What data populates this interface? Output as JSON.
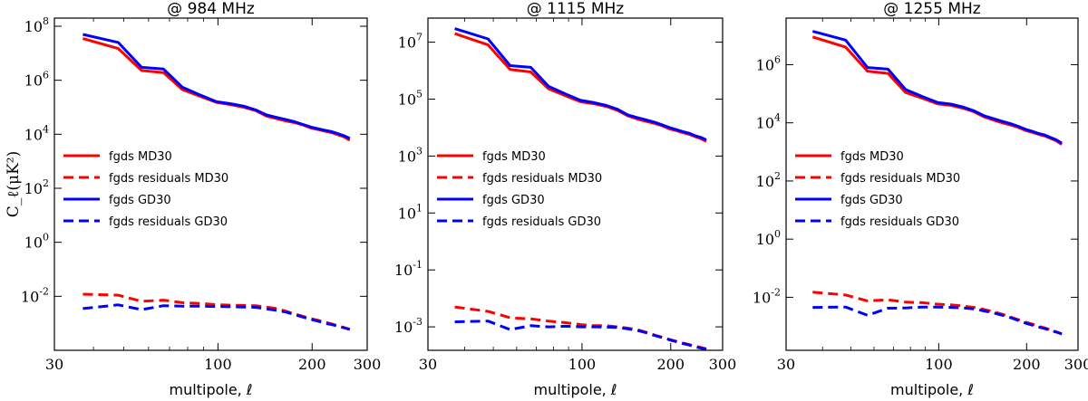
{
  "chart_data": [
    {
      "type": "line",
      "title": "@ 984 MHz",
      "xlabel": "multipole, ℓ",
      "ylabel": "C_ℓ(μK²)",
      "xscale": "log",
      "yscale": "log",
      "xlim": [
        30,
        300
      ],
      "ylim": [
        0.0001,
        200000000
      ],
      "xticks": [
        30,
        100,
        200,
        300
      ],
      "xtick_labels": [
        "30",
        "100",
        "200",
        "300"
      ],
      "yticks": [
        0.01,
        1,
        100,
        10000,
        1000000,
        100000000
      ],
      "ytick_labels": [
        [
          "10",
          "-2"
        ],
        [
          "10",
          "0"
        ],
        [
          "10",
          "2"
        ],
        [
          "10",
          "4"
        ],
        [
          "10",
          "6"
        ],
        [
          "10",
          "8"
        ]
      ],
      "x": [
        37,
        48,
        57,
        67,
        77,
        88,
        99,
        110,
        121,
        132,
        143,
        154,
        165,
        176,
        187,
        198,
        209,
        220,
        231,
        242,
        253,
        264
      ],
      "series": [
        {
          "name": "fgds MD30",
          "color": "#ff0000",
          "style": "solid",
          "values": [
            35000000,
            15000000,
            2300000,
            1900000,
            450000,
            250000,
            150000,
            125000,
            100000,
            75000,
            47000,
            38000,
            31000,
            27000,
            22000,
            17000,
            15000,
            13000,
            11500,
            9500,
            8000,
            6000
          ]
        },
        {
          "name": "fgds residuals MD30",
          "color": "#ff0000",
          "style": "dashed",
          "values": [
            0.012,
            0.011,
            0.0065,
            0.0072,
            0.0058,
            0.0054,
            0.0049,
            0.0047,
            0.0046,
            0.0045,
            0.004,
            0.0035,
            0.0028,
            0.0022,
            0.0018,
            0.0015,
            0.0013,
            0.0011,
            0.00095,
            0.0008,
            0.0007,
            0.0006
          ]
        },
        {
          "name": "fgds GD30",
          "color": "#0000ff",
          "style": "solid",
          "values": [
            50000000,
            25000000,
            3000000,
            2600000,
            550000,
            280000,
            160000,
            135000,
            110000,
            80000,
            52000,
            42000,
            35000,
            29000,
            23000,
            18500,
            16000,
            14000,
            12500,
            10500,
            8800,
            7000
          ]
        },
        {
          "name": "fgds residuals GD30",
          "color": "#0000ff",
          "style": "dashed",
          "values": [
            0.0035,
            0.0048,
            0.0032,
            0.0045,
            0.0043,
            0.0043,
            0.0042,
            0.0041,
            0.004,
            0.0039,
            0.0034,
            0.003,
            0.0026,
            0.0021,
            0.0017,
            0.0014,
            0.0012,
            0.001,
            0.0009,
            0.00078,
            0.00068,
            0.0006
          ]
        }
      ]
    },
    {
      "type": "line",
      "title": "@ 1115 MHz",
      "xlabel": "multipole, ℓ",
      "ylabel": "",
      "xscale": "log",
      "yscale": "log",
      "xlim": [
        30,
        300
      ],
      "ylim": [
        0.00015,
        70000000
      ],
      "xticks": [
        30,
        100,
        200,
        300
      ],
      "xtick_labels": [
        "30",
        "100",
        "200",
        "300"
      ],
      "yticks": [
        0.001,
        0.1,
        10,
        1000,
        100000,
        10000000
      ],
      "ytick_labels": [
        [
          "10",
          "-3"
        ],
        [
          "10",
          "-1"
        ],
        [
          "10",
          "1"
        ],
        [
          "10",
          "3"
        ],
        [
          "10",
          "5"
        ],
        [
          "10",
          "7"
        ]
      ],
      "x": [
        37,
        48,
        57,
        67,
        77,
        88,
        99,
        110,
        121,
        132,
        143,
        154,
        165,
        176,
        187,
        198,
        209,
        220,
        231,
        242,
        253,
        264
      ],
      "series": [
        {
          "name": "fgds MD30",
          "color": "#ff0000",
          "style": "solid",
          "values": [
            20000000,
            8000000,
            1100000,
            900000,
            230000,
            130000,
            80000,
            68000,
            55000,
            40000,
            26000,
            20000,
            16500,
            14000,
            11500,
            9000,
            7800,
            6600,
            5800,
            4800,
            4100,
            3300
          ]
        },
        {
          "name": "fgds residuals MD30",
          "color": "#ff0000",
          "style": "dashed",
          "values": [
            0.005,
            0.0035,
            0.0021,
            0.0019,
            0.0016,
            0.0014,
            0.0012,
            0.0011,
            0.0011,
            0.001,
            0.0009,
            0.0008,
            0.00065,
            0.00052,
            0.00043,
            0.00036,
            0.00031,
            0.00027,
            0.00024,
            0.00021,
            0.00019,
            0.00017
          ]
        },
        {
          "name": "fgds GD30",
          "color": "#0000ff",
          "style": "solid",
          "values": [
            30000000,
            13000000,
            1500000,
            1300000,
            280000,
            150000,
            90000,
            75000,
            60000,
            44000,
            28000,
            22500,
            18500,
            15500,
            12500,
            10000,
            8500,
            7200,
            6300,
            5200,
            4500,
            3700
          ]
        },
        {
          "name": "fgds residuals GD30",
          "color": "#0000ff",
          "style": "dashed",
          "values": [
            0.0015,
            0.0016,
            0.0008,
            0.0011,
            0.001,
            0.00105,
            0.001,
            0.001,
            0.00098,
            0.00095,
            0.00085,
            0.00075,
            0.00062,
            0.0005,
            0.00042,
            0.00035,
            0.0003,
            0.00026,
            0.00023,
            0.0002,
            0.00018,
            0.00016
          ]
        }
      ]
    },
    {
      "type": "line",
      "title": "@ 1255 MHz",
      "xlabel": "multipole, ℓ",
      "ylabel": "",
      "xscale": "log",
      "yscale": "log",
      "xlim": [
        30,
        300
      ],
      "ylim": [
        0.00015,
        40000000
      ],
      "xticks": [
        30,
        100,
        200,
        300
      ],
      "xtick_labels": [
        "30",
        "100",
        "200",
        "300"
      ],
      "yticks": [
        0.01,
        1,
        100,
        10000,
        1000000
      ],
      "ytick_labels": [
        [
          "10",
          "-2"
        ],
        [
          "10",
          "0"
        ],
        [
          "10",
          "2"
        ],
        [
          "10",
          "4"
        ],
        [
          "10",
          "6"
        ]
      ],
      "x": [
        37,
        48,
        57,
        67,
        77,
        88,
        99,
        110,
        121,
        132,
        143,
        154,
        165,
        176,
        187,
        198,
        209,
        220,
        231,
        242,
        253,
        264
      ],
      "series": [
        {
          "name": "fgds MD30",
          "color": "#ff0000",
          "style": "solid",
          "values": [
            9000000,
            4000000,
            600000,
            500000,
            110000,
            70000,
            45000,
            40000,
            32000,
            24000,
            16000,
            12500,
            10000,
            8500,
            7000,
            5500,
            4700,
            4000,
            3500,
            2900,
            2400,
            1800
          ]
        },
        {
          "name": "fgds residuals MD30",
          "color": "#ff0000",
          "style": "dashed",
          "values": [
            0.015,
            0.012,
            0.0075,
            0.0082,
            0.0068,
            0.0065,
            0.0058,
            0.0055,
            0.005,
            0.0045,
            0.0038,
            0.0032,
            0.0026,
            0.0021,
            0.0017,
            0.0014,
            0.0012,
            0.001,
            0.00088,
            0.00075,
            0.00065,
            0.00055
          ]
        },
        {
          "name": "fgds GD30",
          "color": "#0000ff",
          "style": "solid",
          "values": [
            14000000,
            7000000,
            800000,
            700000,
            140000,
            80000,
            50000,
            44000,
            35000,
            26000,
            17500,
            14000,
            11200,
            9400,
            7600,
            6000,
            5100,
            4300,
            3800,
            3100,
            2600,
            2000
          ]
        },
        {
          "name": "fgds residuals GD30",
          "color": "#0000ff",
          "style": "dashed",
          "values": [
            0.0045,
            0.0046,
            0.0024,
            0.0042,
            0.0043,
            0.0046,
            0.0046,
            0.0045,
            0.0043,
            0.004,
            0.0034,
            0.0029,
            0.0024,
            0.002,
            0.0016,
            0.0013,
            0.0011,
            0.00095,
            0.00083,
            0.00072,
            0.00063,
            0.00055
          ]
        }
      ]
    }
  ]
}
